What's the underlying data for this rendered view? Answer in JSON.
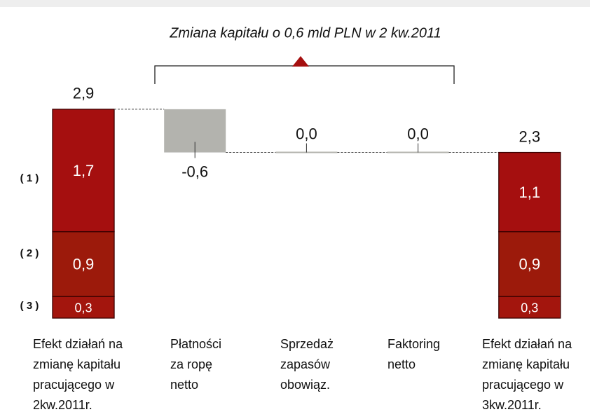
{
  "chart_data": {
    "type": "waterfall",
    "title": "Zmiana kapitału o 0,6 mld PLN w 2 kw.2011",
    "categories": [
      [
        "Efekt działań na",
        "zmianę kapitału",
        "pracującego w",
        "2kw.2011r."
      ],
      [
        "Płatności",
        "za ropę",
        "netto"
      ],
      [
        "Sprzedaż",
        "zapasów",
        "obowiąz."
      ],
      [
        "Faktoring",
        "netto"
      ],
      [
        "Efekt działań na",
        "zmianę kapitału",
        "pracującego w",
        "3kw.2011r."
      ]
    ],
    "series": [
      {
        "name": "( 3 )",
        "color": "#a3150d",
        "values": [
          0.3,
          null,
          null,
          null,
          0.3
        ],
        "value_labels": [
          "0,3",
          null,
          null,
          null,
          "0,3"
        ]
      },
      {
        "name": "( 2 )",
        "color": "#9c1a0b",
        "values": [
          0.9,
          null,
          null,
          null,
          0.9
        ],
        "value_labels": [
          "0,9",
          null,
          null,
          null,
          "0,9"
        ]
      },
      {
        "name": "( 1 )",
        "color": "#a50f0f",
        "values": [
          1.7,
          null,
          null,
          null,
          1.1
        ],
        "value_labels": [
          "1,7",
          null,
          null,
          null,
          "1,1"
        ]
      }
    ],
    "changes": {
      "color": "#b3b3ae",
      "values": [
        null,
        -0.6,
        0.0,
        0.0,
        null
      ],
      "value_labels": [
        null,
        "-0,6",
        "0,0",
        "0,0",
        null
      ]
    },
    "totals": {
      "values": [
        2.9,
        null,
        null,
        null,
        2.3
      ],
      "value_labels": [
        "2,9",
        null,
        null,
        null,
        "2,3"
      ]
    }
  }
}
